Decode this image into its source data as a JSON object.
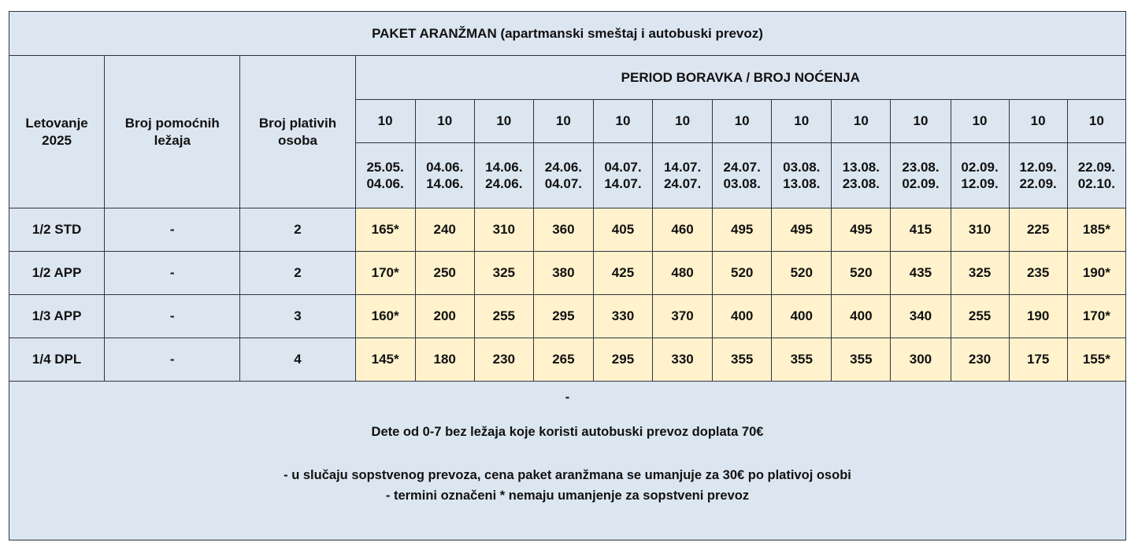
{
  "title": "PAKET ARANŽMAN (apartmanski smeštaj i autobuski prevoz)",
  "season": {
    "line1": "Letovanje",
    "line2": "2025",
    "color": "#e00000"
  },
  "headers": {
    "beds_line1": "Broj pomoćnih",
    "beds_line2": "ležaja",
    "paying_line1": "Broj plativih",
    "paying_line2": "osoba",
    "period": "PERIOD BORAVKA / BROJ NOĆENJA"
  },
  "periods": [
    {
      "nights": "10",
      "from": "25.05.",
      "to": "04.06."
    },
    {
      "nights": "10",
      "from": "04.06.",
      "to": "14.06."
    },
    {
      "nights": "10",
      "from": "14.06.",
      "to": "24.06."
    },
    {
      "nights": "10",
      "from": "24.06.",
      "to": "04.07."
    },
    {
      "nights": "10",
      "from": "04.07.",
      "to": "14.07."
    },
    {
      "nights": "10",
      "from": "14.07.",
      "to": "24.07."
    },
    {
      "nights": "10",
      "from": "24.07.",
      "to": "03.08."
    },
    {
      "nights": "10",
      "from": "03.08.",
      "to": "13.08."
    },
    {
      "nights": "10",
      "from": "13.08.",
      "to": "23.08."
    },
    {
      "nights": "10",
      "from": "23.08.",
      "to": "02.09."
    },
    {
      "nights": "10",
      "from": "02.09.",
      "to": "12.09."
    },
    {
      "nights": "10",
      "from": "12.09.",
      "to": "22.09."
    },
    {
      "nights": "10",
      "from": "22.09.",
      "to": "02.10."
    }
  ],
  "rows": [
    {
      "type": "1/2 STD",
      "extra_beds": "-",
      "paying": "2",
      "prices": [
        "165*",
        "240",
        "310",
        "360",
        "405",
        "460",
        "495",
        "495",
        "495",
        "415",
        "310",
        "225",
        "185*"
      ]
    },
    {
      "type": "1/2 APP",
      "extra_beds": "-",
      "paying": "2",
      "prices": [
        "170*",
        "250",
        "325",
        "380",
        "425",
        "480",
        "520",
        "520",
        "520",
        "435",
        "325",
        "235",
        "190*"
      ]
    },
    {
      "type": "1/3 APP",
      "extra_beds": "-",
      "paying": "3",
      "prices": [
        "160*",
        "200",
        "255",
        "295",
        "330",
        "370",
        "400",
        "400",
        "400",
        "340",
        "255",
        "190",
        "170*"
      ]
    },
    {
      "type": "1/4 DPL",
      "extra_beds": "-",
      "paying": "4",
      "prices": [
        "145*",
        "180",
        "230",
        "265",
        "295",
        "330",
        "355",
        "355",
        "355",
        "300",
        "230",
        "175",
        "155*"
      ]
    }
  ],
  "footer": {
    "dash": "-",
    "child_note": "Dete od 0-7 bez ležaja koje koristi autobuski prevoz doplata 70€",
    "note1": "- u slučaju sopstvenog prevoza, cena paket aranžmana se umanjuje za 30€ po plativoj osobi",
    "note2": "- termini označeni * nemaju umanjenje za sopstveni prevoz"
  },
  "colors": {
    "header_bg": "#dce6f1",
    "price_bg": "#fff2cc",
    "border": "#2f3542",
    "text": "#111111"
  }
}
